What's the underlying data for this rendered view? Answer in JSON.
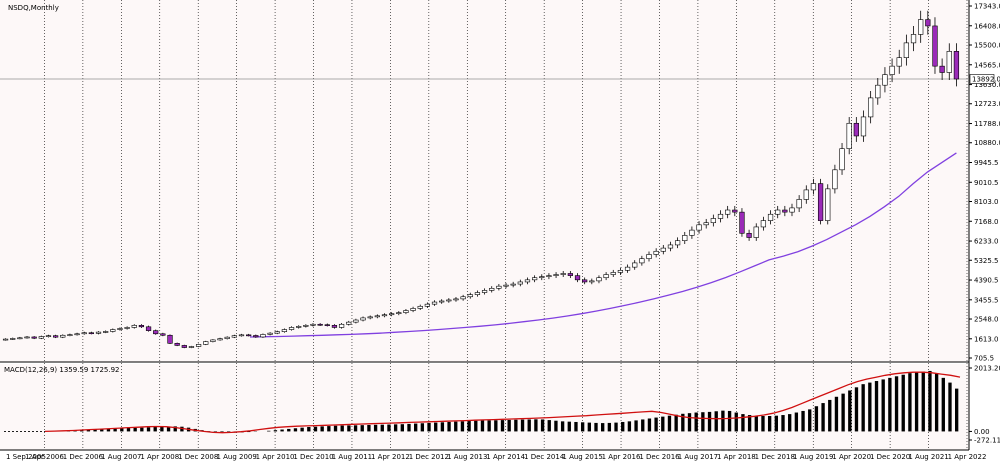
{
  "chart_data": {
    "type": "candlestick",
    "main": {
      "title": "NSDQ,Monthly",
      "yticks": [
        17343.0,
        16408.0,
        15500.0,
        14565.0,
        13630.0,
        12723.0,
        11788.0,
        10880.0,
        9945.5,
        9010.5,
        8103.0,
        7168.0,
        6233.0,
        5325.5,
        4390.5,
        3455.5,
        2548.0,
        1613.0,
        705.5
      ],
      "ylim": [
        705.5,
        17343.0
      ],
      "current_price": "13892.0",
      "candles_close": [
        1600,
        1630,
        1660,
        1700,
        1640,
        1720,
        1760,
        1690,
        1780,
        1810,
        1850,
        1900,
        1870,
        1930,
        1960,
        2050,
        2100,
        2150,
        2250,
        2180,
        2000,
        1850,
        1780,
        1400,
        1300,
        1200,
        1250,
        1350,
        1480,
        1560,
        1620,
        1690,
        1760,
        1800,
        1770,
        1700,
        1820,
        1880,
        1950,
        2050,
        2150,
        2200,
        2250,
        2300,
        2280,
        2250,
        2150,
        2300,
        2400,
        2500,
        2600,
        2650,
        2700,
        2750,
        2800,
        2850,
        2950,
        3050,
        3150,
        3250,
        3350,
        3400,
        3450,
        3500,
        3600,
        3700,
        3800,
        3900,
        4000,
        4100,
        4150,
        4200,
        4300,
        4400,
        4500,
        4550,
        4600,
        4650,
        4700,
        4600,
        4400,
        4300,
        4350,
        4500,
        4650,
        4750,
        4850,
        5000,
        5200,
        5400,
        5600,
        5750,
        5900,
        6050,
        6250,
        6500,
        6750,
        7000,
        7100,
        7300,
        7500,
        7700,
        7600,
        6600,
        6400,
        6900,
        7200,
        7500,
        7700,
        7600,
        7800,
        8200,
        8650,
        8950,
        7200,
        8700,
        9600,
        10600,
        11800,
        11200,
        12100,
        13000,
        13600,
        14100,
        14500,
        14900,
        15600,
        16000,
        16700,
        16400,
        14500,
        14200,
        15200,
        13892
      ],
      "ma": [
        1700,
        1710,
        1720,
        1740,
        1760,
        1780,
        1800,
        1820,
        1850,
        1880,
        1920,
        1960,
        2000,
        2050,
        2100,
        2150,
        2210,
        2270,
        2340,
        2420,
        2500,
        2590,
        2690,
        2800,
        2920,
        3050,
        3190,
        3340,
        3500,
        3670,
        3850,
        4050,
        4270,
        4510,
        4780,
        5060,
        5340,
        5520,
        5730,
        6000,
        6300,
        6650,
        7000,
        7400,
        7850,
        8350,
        8950,
        9500,
        9950,
        10400
      ]
    },
    "macd": {
      "title": "MACD(12,26,9) 1359.59 1725.92",
      "yticks": [
        2013.2,
        0.0,
        -272.11
      ],
      "ylim": [
        -272.11,
        2013.2
      ],
      "histogram": [
        0,
        10,
        20,
        30,
        40,
        50,
        60,
        70,
        75,
        80,
        90,
        100,
        110,
        115,
        120,
        130,
        140,
        150,
        155,
        160,
        150,
        120,
        80,
        40,
        10,
        -20,
        -40,
        -50,
        -40,
        -30,
        -20,
        -10,
        0,
        20,
        40,
        60,
        80,
        100,
        120,
        140,
        150,
        160,
        170,
        180,
        185,
        190,
        195,
        200,
        205,
        210,
        215,
        220,
        225,
        230,
        240,
        250,
        260,
        270,
        280,
        290,
        300,
        310,
        320,
        330,
        340,
        345,
        350,
        355,
        360,
        365,
        370,
        375,
        380,
        385,
        380,
        360,
        340,
        320,
        310,
        300,
        290,
        280,
        270,
        265,
        270,
        280,
        300,
        320,
        350,
        380,
        410,
        440,
        470,
        500,
        530,
        560,
        580,
        600,
        610,
        620,
        640,
        660,
        650,
        600,
        550,
        520,
        500,
        490,
        490,
        500,
        520,
        550,
        600,
        650,
        700,
        800,
        900,
        1000,
        1100,
        1200,
        1300,
        1400,
        1500,
        1550,
        1600,
        1650,
        1700,
        1750,
        1800,
        1850,
        1880,
        1900,
        1920,
        1850,
        1700,
        1550,
        1359
      ],
      "signal": [
        0,
        10,
        20,
        30,
        45,
        60,
        75,
        90,
        105,
        120,
        135,
        150,
        155,
        150,
        120,
        80,
        40,
        0,
        -30,
        -40,
        -30,
        -10,
        20,
        60,
        100,
        130,
        150,
        165,
        175,
        185,
        195,
        205,
        215,
        225,
        235,
        245,
        255,
        265,
        275,
        285,
        295,
        305,
        315,
        325,
        335,
        345,
        355,
        365,
        375,
        385,
        395,
        405,
        415,
        425,
        440,
        455,
        470,
        485,
        500,
        520,
        540,
        560,
        580,
        600,
        620,
        640,
        600,
        540,
        480,
        440,
        420,
        410,
        405,
        410,
        425,
        450,
        480,
        520,
        580,
        660,
        760,
        880,
        1000,
        1120,
        1240,
        1360,
        1480,
        1580,
        1660,
        1720,
        1780,
        1830,
        1860,
        1880,
        1880,
        1860,
        1820,
        1780,
        1725
      ]
    },
    "xticks": [
      "1 Sep 2005",
      "1 Apr 2006",
      "1 Dec 2006",
      "1 Aug 2007",
      "1 Apr 2008",
      "1 Dec 2008",
      "1 Aug 2009",
      "1 Apr 2010",
      "1 Dec 2010",
      "1 Aug 2011",
      "1 Apr 2012",
      "1 Dec 2012",
      "1 Aug 2013",
      "1 Apr 2014",
      "1 Dec 2014",
      "1 Aug 2015",
      "1 Apr 2016",
      "1 Dec 2016",
      "1 Aug 2017",
      "1 Apr 2018",
      "1 Dec 2018",
      "1 Aug 2019",
      "1 Apr 2020",
      "1 Dec 2020",
      "1 Aug 2021",
      "1 Apr 2022"
    ],
    "colors": {
      "bull_fill": "#ffffff",
      "bear_fill": "#9a2bb8",
      "candle_outline": "#000000",
      "ma_line": "#8040e0",
      "macd_signal": "#d01010",
      "macd_hist": "#000000",
      "grid": "#000000",
      "price_line": "#909090"
    }
  }
}
